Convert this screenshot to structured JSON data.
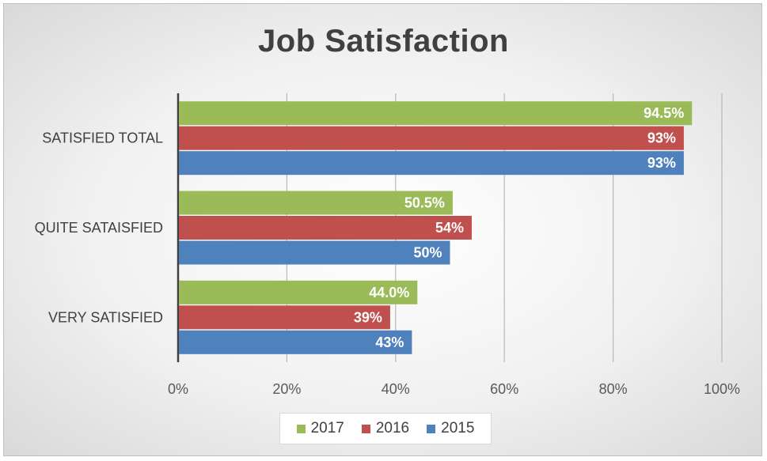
{
  "chart_data": {
    "type": "bar",
    "orientation": "horizontal",
    "title": "Job Satisfaction",
    "categories": [
      "SATISFIED TOTAL",
      "QUITE SATAISFIED",
      "VERY SATISFIED"
    ],
    "series": [
      {
        "name": "2017",
        "color": "#9bbb59",
        "values": [
          94.5,
          50.5,
          44.0
        ],
        "labels": [
          "94.5%",
          "50.5%",
          "44.0%"
        ]
      },
      {
        "name": "2016",
        "color": "#c0504d",
        "values": [
          93,
          54,
          39
        ],
        "labels": [
          "93%",
          "54%",
          "39%"
        ]
      },
      {
        "name": "2015",
        "color": "#4f81bd",
        "values": [
          93,
          50,
          43
        ],
        "labels": [
          "93%",
          "50%",
          "43%"
        ]
      }
    ],
    "xlim": [
      0,
      100
    ],
    "x_ticks": [
      "0%",
      "20%",
      "40%",
      "60%",
      "80%",
      "100%"
    ],
    "grid": true,
    "legend_position": "bottom"
  }
}
